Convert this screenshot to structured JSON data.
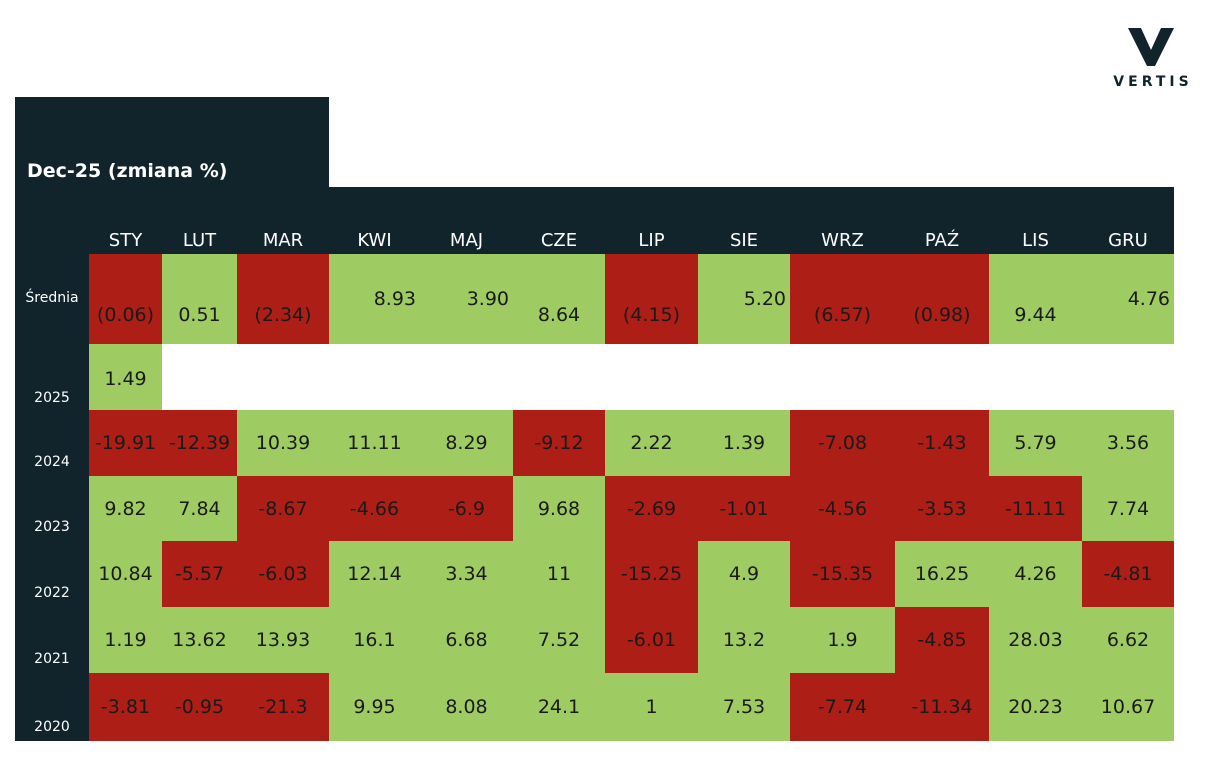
{
  "brand": {
    "name": "VERTIS",
    "logo_icon": "v-chevron-logo-icon"
  },
  "colors": {
    "dark": "#12242b",
    "positive": "#9fcb63",
    "negative": "#ad1f16"
  },
  "chart_data": {
    "type": "table",
    "title": "Dec-25 (zmiana %)",
    "columns": [
      "STY",
      "LUT",
      "MAR",
      "KWI",
      "MAJ",
      "CZE",
      "LIP",
      "SIE",
      "WRZ",
      "PAŹ",
      "LIS",
      "GRU"
    ],
    "average": {
      "label": "Średnia",
      "values": [
        "(0.06)",
        "0.51",
        "(2.34)",
        "8.93",
        "3.90",
        "8.64",
        "(4.15)",
        "5.20",
        "(6.57)",
        "(0.98)",
        "9.44",
        "4.76"
      ]
    },
    "rows": [
      {
        "year": "2025",
        "values": [
          "1.49"
        ]
      },
      {
        "year": "2024",
        "values": [
          "-19.91",
          "-12.39",
          "10.39",
          "11.11",
          "8.29",
          "-9.12",
          "2.22",
          "1.39",
          "-7.08",
          "-1.43",
          "5.79",
          "3.56"
        ]
      },
      {
        "year": "2023",
        "values": [
          "9.82",
          "7.84",
          "-8.67",
          "-4.66",
          "-6.9",
          "9.68",
          "-2.69",
          "-1.01",
          "-4.56",
          "-3.53",
          "-11.11",
          "7.74"
        ]
      },
      {
        "year": "2022",
        "values": [
          "10.84",
          "-5.57",
          "-6.03",
          "12.14",
          "3.34",
          "11",
          "-15.25",
          "4.9",
          "-15.35",
          "16.25",
          "4.26",
          "-4.81"
        ]
      },
      {
        "year": "2021",
        "values": [
          "1.19",
          "13.62",
          "13.93",
          "16.1",
          "6.68",
          "7.52",
          "-6.01",
          "13.2",
          "1.9",
          "-4.85",
          "28.03",
          "6.62"
        ]
      },
      {
        "year": "2020",
        "values": [
          "-3.81",
          "-0.95",
          "-21.3",
          "9.95",
          "8.08",
          "24.1",
          "1",
          "7.53",
          "-7.74",
          "-11.34",
          "20.23",
          "10.67"
        ]
      }
    ]
  }
}
